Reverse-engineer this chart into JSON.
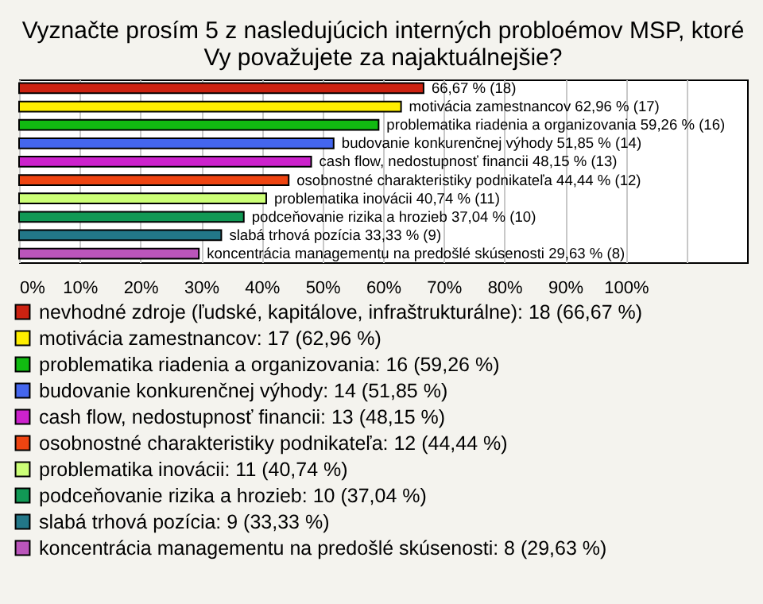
{
  "chart_data": {
    "type": "bar",
    "orientation": "horizontal",
    "title": "Vyznačte prosím 5 z nasledujúcich interných probloémov MSP, ktoré\nVy považujete za najaktuálnejšie?",
    "categories": [
      null,
      null,
      null,
      null,
      null,
      null,
      null,
      null,
      null,
      null
    ],
    "series": [
      {
        "name": "nevhodné zdroje (ľudské, kapitálove, infraštrukturálne): 18 (66,67 %)",
        "color": "#cc2211",
        "values": [
          66.67,
          null,
          null,
          null,
          null,
          null,
          null,
          null,
          null,
          null
        ],
        "value_labels": [
          "66,67 % (18)",
          null,
          null,
          null,
          null,
          null,
          null,
          null,
          null,
          null
        ]
      },
      {
        "name": "motivácia zamestnancov: 17 (62,96 %)",
        "color": "#ffee00",
        "values": [
          null,
          62.96,
          null,
          null,
          null,
          null,
          null,
          null,
          null,
          null
        ],
        "value_labels": [
          null,
          "motivácia zamestnancov 62,96 % (17)",
          null,
          null,
          null,
          null,
          null,
          null,
          null,
          null
        ]
      },
      {
        "name": "problematika riadenia a organizovania: 16 (59,26 %)",
        "color": "#11bb11",
        "values": [
          null,
          null,
          59.26,
          null,
          null,
          null,
          null,
          null,
          null,
          null
        ],
        "value_labels": [
          null,
          null,
          "problematika riadenia a organizovania 59,26 % (16)",
          null,
          null,
          null,
          null,
          null,
          null,
          null
        ]
      },
      {
        "name": "budovanie konkurenčnej výhody: 14 (51,85 %)",
        "color": "#4466ee",
        "values": [
          null,
          null,
          null,
          51.85,
          null,
          null,
          null,
          null,
          null,
          null
        ],
        "value_labels": [
          null,
          null,
          null,
          "budovanie konkurenčnej výhody 51,85 % (14)",
          null,
          null,
          null,
          null,
          null,
          null
        ]
      },
      {
        "name": "cash flow, nedostupnosť financii: 13 (48,15 %)",
        "color": "#cc22cc",
        "values": [
          null,
          null,
          null,
          null,
          48.15,
          null,
          null,
          null,
          null,
          null
        ],
        "value_labels": [
          null,
          null,
          null,
          null,
          "cash flow, nedostupnosť financii 48,15 % (13)",
          null,
          null,
          null,
          null,
          null
        ]
      },
      {
        "name": "osobnostné charakteristiky podnikateľa: 12 (44,44 %)",
        "color": "#ee4411",
        "values": [
          null,
          null,
          null,
          null,
          null,
          44.44,
          null,
          null,
          null,
          null
        ],
        "value_labels": [
          null,
          null,
          null,
          null,
          null,
          "osobnostné charakteristiky podnikateľa 44,44 % (12)",
          null,
          null,
          null,
          null
        ]
      },
      {
        "name": "problematika inovácii: 11 (40,74 %)",
        "color": "#ccff77",
        "values": [
          null,
          null,
          null,
          null,
          null,
          null,
          40.74,
          null,
          null,
          null
        ],
        "value_labels": [
          null,
          null,
          null,
          null,
          null,
          null,
          "problematika inovácii 40,74 % (11)",
          null,
          null,
          null
        ]
      },
      {
        "name": "podceňovanie rizika a hrozieb: 10 (37,04 %)",
        "color": "#119955",
        "values": [
          null,
          null,
          null,
          null,
          null,
          null,
          null,
          37.04,
          null,
          null
        ],
        "value_labels": [
          null,
          null,
          null,
          null,
          null,
          null,
          null,
          "podceňovanie rizika a hrozieb 37,04 % (10)",
          null,
          null
        ]
      },
      {
        "name": "slabá trhová pozícia: 9 (33,33 %)",
        "color": "#227788",
        "values": [
          null,
          null,
          null,
          null,
          null,
          null,
          null,
          null,
          33.33,
          null
        ],
        "value_labels": [
          null,
          null,
          null,
          null,
          null,
          null,
          null,
          null,
          "slabá trhová pozícia 33,33 % (9)",
          null
        ]
      },
      {
        "name": "koncentrácia managementu na predošlé skúsenosti: 8 (29,63 %)",
        "color": "#bb55bb",
        "values": [
          null,
          null,
          null,
          null,
          null,
          null,
          null,
          null,
          null,
          29.63
        ],
        "value_labels": [
          null,
          null,
          null,
          null,
          null,
          null,
          null,
          null,
          null,
          "koncentrácia managementu na predošlé skúsenosti 29,63 % (8)"
        ]
      }
    ],
    "xlim": [
      0,
      120
    ],
    "xticks": [
      {
        "value": 0,
        "label": "0%"
      },
      {
        "value": 10,
        "label": "10%"
      },
      {
        "value": 20,
        "label": "20%"
      },
      {
        "value": 30,
        "label": "30%"
      },
      {
        "value": 40,
        "label": "40%"
      },
      {
        "value": 50,
        "label": "50%"
      },
      {
        "value": 60,
        "label": "60%"
      },
      {
        "value": 70,
        "label": "70%"
      },
      {
        "value": 80,
        "label": "80%"
      },
      {
        "value": 90,
        "label": "90%"
      },
      {
        "value": 100,
        "label": "100%"
      },
      {
        "value": 110,
        "label": null
      }
    ],
    "grid": "x",
    "tick_labels": "x",
    "legend": "bottom"
  }
}
